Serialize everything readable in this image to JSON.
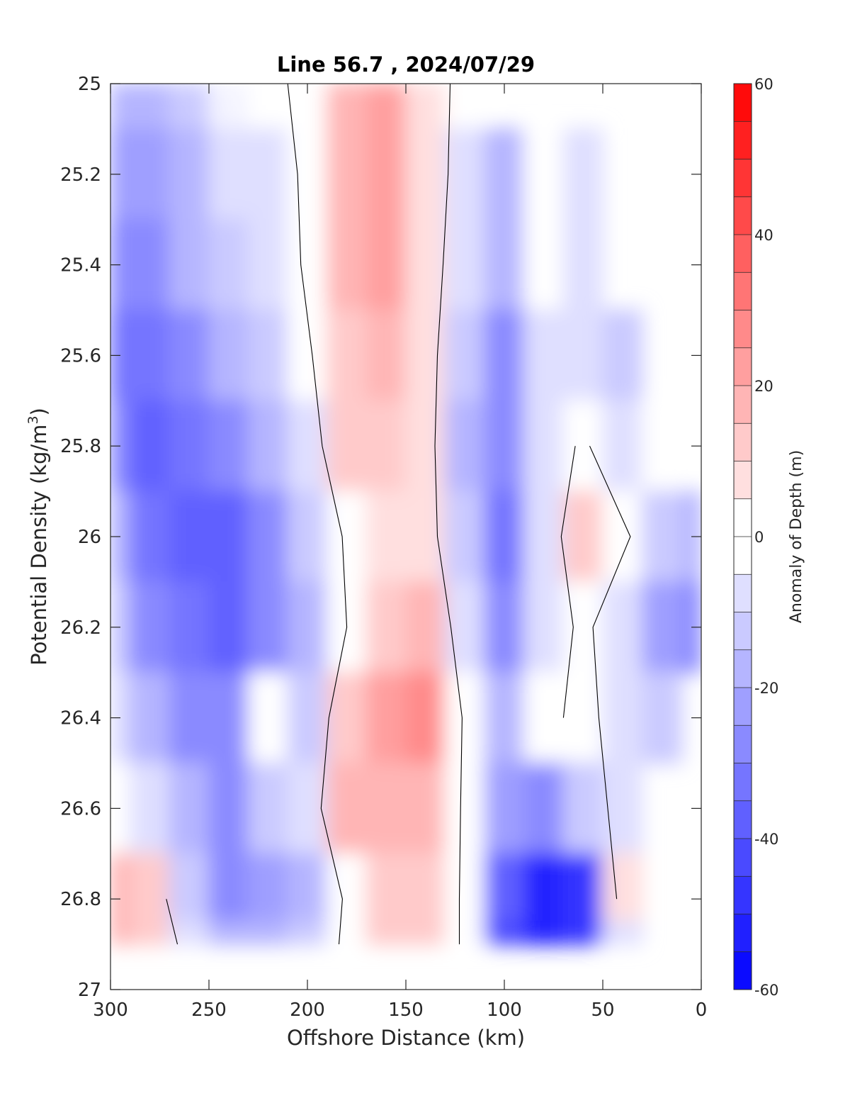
{
  "chart_data": {
    "type": "heatmap",
    "title": "Line 56.7 , 2024/07/29",
    "xlabel": "Offshore Distance (km)",
    "ylabel_main": "Potential Density (kg/m",
    "ylabel_sup": "3",
    "ylabel_close": ")",
    "colorbar_label": "Anomaly of Depth (m)",
    "xlim": [
      300,
      0
    ],
    "xaxis_reversed": true,
    "ylim": [
      25,
      27
    ],
    "yaxis_reversed": true,
    "x_ticks": [
      "300",
      "250",
      "200",
      "150",
      "100",
      "50",
      "0"
    ],
    "y_ticks": [
      "25",
      "25.2",
      "25.4",
      "25.6",
      "25.8",
      "26",
      "26.2",
      "26.4",
      "26.6",
      "26.8",
      "27"
    ],
    "colorbar": {
      "range": [
        -60,
        60
      ],
      "step": 5,
      "ticks": [
        "60",
        "40",
        "20",
        "0",
        "-20",
        "-40",
        "-60"
      ],
      "positive_color": "#ff0000",
      "negative_color": "#0000ff",
      "zero_color": "#ffffff"
    },
    "grid": false,
    "contour_line": "0 m anomaly",
    "x": [
      300,
      280,
      260,
      240,
      220,
      200,
      180,
      160,
      140,
      120,
      100,
      80,
      60,
      40,
      20,
      0
    ],
    "y": [
      25.0,
      25.2,
      25.4,
      25.6,
      25.8,
      26.0,
      26.2,
      26.4,
      26.6,
      26.8,
      26.9
    ],
    "z": [
      [
        -20,
        -18,
        -12,
        -5,
        -3,
        3,
        15,
        20,
        5,
        -3,
        null,
        null,
        null,
        null,
        null,
        null
      ],
      [
        -25,
        -22,
        -16,
        -10,
        -6,
        2,
        18,
        24,
        8,
        -6,
        -18,
        2,
        -6,
        null,
        null,
        null
      ],
      [
        -30,
        -28,
        -20,
        -14,
        -10,
        2,
        16,
        22,
        8,
        -10,
        -20,
        -2,
        -8,
        null,
        null,
        null
      ],
      [
        -35,
        -32,
        -26,
        -18,
        -12,
        -2,
        14,
        16,
        6,
        -14,
        -26,
        -6,
        -10,
        -14,
        null,
        null
      ],
      [
        -30,
        -38,
        -32,
        -26,
        -18,
        -6,
        10,
        10,
        5,
        -16,
        -30,
        -8,
        2,
        -10,
        -2,
        null
      ],
      [
        -20,
        -34,
        -38,
        -36,
        -30,
        -15,
        2,
        8,
        6,
        -14,
        -34,
        -8,
        10,
        3,
        -12,
        -16
      ],
      [
        -12,
        -26,
        -34,
        -38,
        -28,
        -18,
        0,
        14,
        18,
        -10,
        -28,
        -6,
        2,
        -6,
        -22,
        -30
      ],
      [
        -6,
        -18,
        -28,
        -30,
        3,
        -12,
        10,
        20,
        26,
        -2,
        -18,
        -4,
        4,
        -6,
        -14,
        null
      ],
      [
        -4,
        -10,
        -20,
        -26,
        -14,
        -8,
        15,
        18,
        16,
        -2,
        -22,
        -26,
        -12,
        -8,
        null,
        null
      ],
      [
        18,
        10,
        -14,
        -26,
        -22,
        -16,
        2,
        12,
        12,
        -2,
        -40,
        -52,
        -46,
        8,
        null,
        null
      ],
      [
        18,
        14,
        -6,
        -20,
        -20,
        -12,
        3,
        12,
        12,
        -2,
        -42,
        -55,
        -50,
        -10,
        null,
        null
      ]
    ]
  }
}
